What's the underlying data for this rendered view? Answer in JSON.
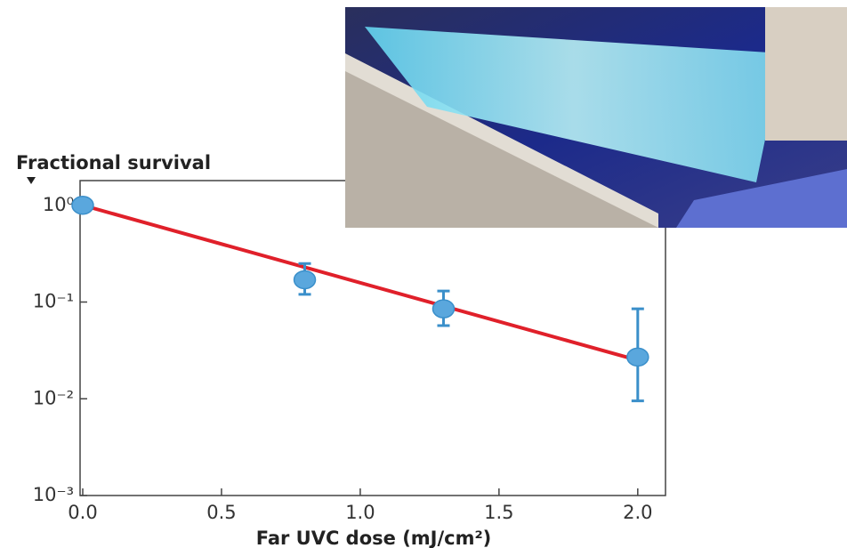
{
  "chart_data": {
    "type": "scatter",
    "title": "Fractional survival",
    "x_label": "Far UVC dose (mJ/cm²)",
    "log_y": true,
    "xlim": [
      0,
      2.1
    ],
    "ylim": [
      0.001,
      1.8
    ],
    "xticks": [
      {
        "value": 0,
        "label": "0.0"
      },
      0.5,
      {
        "value": 1,
        "label": "1.0"
      },
      1.5,
      {
        "value": 2,
        "label": "2.0"
      }
    ],
    "yticks": [
      {
        "value": 1,
        "label": "10⁰"
      },
      {
        "value": 0.1,
        "label": "10⁻¹"
      },
      {
        "value": 0.01,
        "label": "10⁻²"
      },
      {
        "value": 0.001,
        "label": "10⁻³"
      }
    ],
    "x": [
      0,
      0.8,
      1.3,
      2.0
    ],
    "series": [
      {
        "color": "#5aa7dd",
        "values": [
          1.0,
          0.17,
          0.085,
          0.027
        ],
        "yerr_low": [
          null,
          0.12,
          0.057,
          0.0095
        ],
        "yerr_high": [
          null,
          0.25,
          0.13,
          0.085
        ]
      }
    ],
    "fit": {
      "color": "#e0202a",
      "x": [
        0,
        2.0
      ],
      "values": [
        1.0,
        0.025
      ]
    }
  }
}
